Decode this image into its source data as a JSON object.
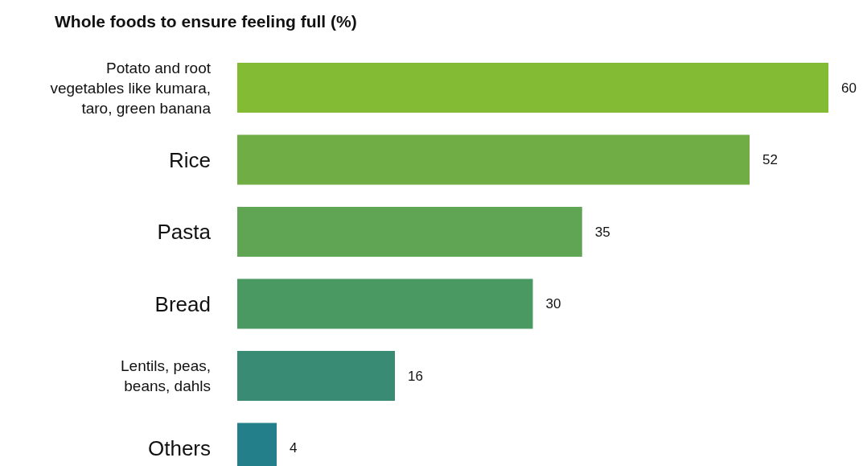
{
  "chart_data": {
    "type": "bar",
    "orientation": "horizontal",
    "title": "Whole foods to ensure feeling full (%)",
    "categories": [
      "Potato and root vegetables like kumara, taro, green banana",
      "Rice",
      "Pasta",
      "Bread",
      "Lentils, peas, beans, dahls",
      "Others"
    ],
    "values": [
      60,
      52,
      35,
      30,
      16,
      4
    ],
    "colors": [
      "#84bb35",
      "#70ae45",
      "#5fa553",
      "#4a9963",
      "#3a8b73",
      "#237f8a"
    ],
    "data_labels": true
  }
}
